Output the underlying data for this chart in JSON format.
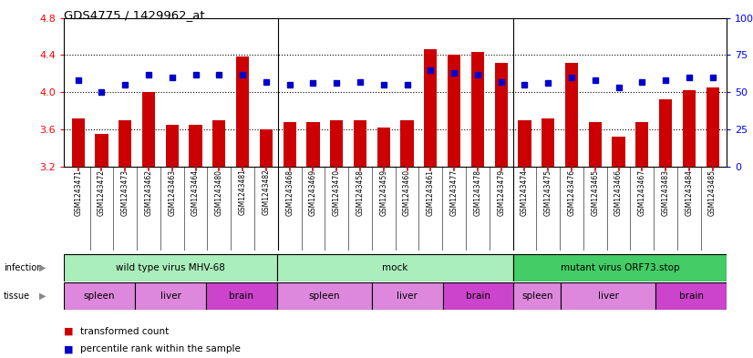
{
  "title": "GDS4775 / 1429962_at",
  "samples": [
    "GSM1243471",
    "GSM1243472",
    "GSM1243473",
    "GSM1243462",
    "GSM1243463",
    "GSM1243464",
    "GSM1243480",
    "GSM1243481",
    "GSM1243482",
    "GSM1243468",
    "GSM1243469",
    "GSM1243470",
    "GSM1243458",
    "GSM1243459",
    "GSM1243460",
    "GSM1243461",
    "GSM1243477",
    "GSM1243478",
    "GSM1243479",
    "GSM1243474",
    "GSM1243475",
    "GSM1243476",
    "GSM1243465",
    "GSM1243466",
    "GSM1243467",
    "GSM1243483",
    "GSM1243484",
    "GSM1243485"
  ],
  "bar_values": [
    3.72,
    3.55,
    3.7,
    4.0,
    3.65,
    3.65,
    3.7,
    4.38,
    3.6,
    3.68,
    3.68,
    3.7,
    3.7,
    3.62,
    3.7,
    4.46,
    4.4,
    4.43,
    4.32,
    3.7,
    3.72,
    4.32,
    3.68,
    3.52,
    3.68,
    3.92,
    4.02,
    4.05
  ],
  "percentile_values": [
    58,
    50,
    55,
    62,
    60,
    62,
    62,
    62,
    57,
    55,
    56,
    56,
    57,
    55,
    55,
    65,
    63,
    62,
    57,
    55,
    56,
    60,
    58,
    53,
    57,
    58,
    60,
    60
  ],
  "ylim_left": [
    3.2,
    4.8
  ],
  "ylim_right": [
    0,
    100
  ],
  "yticks_left": [
    3.2,
    3.6,
    4.0,
    4.4,
    4.8
  ],
  "yticks_right": [
    0,
    25,
    50,
    75,
    100
  ],
  "infection_groups": [
    {
      "label": "wild type virus MHV-68",
      "start": 0,
      "end": 9,
      "color": "#AAEEBB"
    },
    {
      "label": "mock",
      "start": 9,
      "end": 19,
      "color": "#AAEEBB"
    },
    {
      "label": "mutant virus ORF73.stop",
      "start": 19,
      "end": 28,
      "color": "#44CC66"
    }
  ],
  "tissue_groups": [
    {
      "label": "spleen",
      "start": 0,
      "end": 3,
      "color": "#DD88DD"
    },
    {
      "label": "liver",
      "start": 3,
      "end": 6,
      "color": "#DD88DD"
    },
    {
      "label": "brain",
      "start": 6,
      "end": 9,
      "color": "#CC44CC"
    },
    {
      "label": "spleen",
      "start": 9,
      "end": 13,
      "color": "#DD88DD"
    },
    {
      "label": "liver",
      "start": 13,
      "end": 16,
      "color": "#DD88DD"
    },
    {
      "label": "brain",
      "start": 16,
      "end": 19,
      "color": "#CC44CC"
    },
    {
      "label": "spleen",
      "start": 19,
      "end": 21,
      "color": "#DD88DD"
    },
    {
      "label": "liver",
      "start": 21,
      "end": 25,
      "color": "#DD88DD"
    },
    {
      "label": "brain",
      "start": 25,
      "end": 28,
      "color": "#CC44CC"
    }
  ],
  "bar_color": "#CC0000",
  "percentile_color": "#0000CC",
  "bar_width": 0.55,
  "bg_color": "#FFFFFF",
  "xtick_bg": "#D8D8D8",
  "infection_label": "infection",
  "tissue_label": "tissue",
  "legend_items": [
    {
      "label": "transformed count",
      "color": "#CC0000"
    },
    {
      "label": "percentile rank within the sample",
      "color": "#0000CC"
    }
  ],
  "grid_yticks": [
    3.6,
    4.0,
    4.4
  ]
}
